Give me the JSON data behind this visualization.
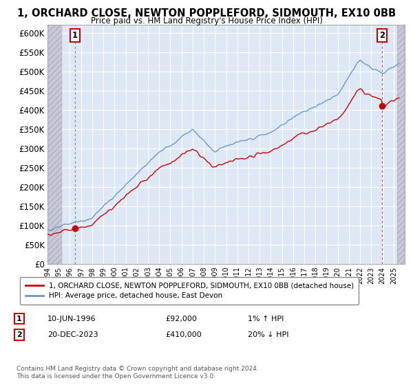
{
  "title": "1, ORCHARD CLOSE, NEWTON POPPLEFORD, SIDMOUTH, EX10 0BB",
  "subtitle": "Price paid vs. HM Land Registry's House Price Index (HPI)",
  "legend_line1": "1, ORCHARD CLOSE, NEWTON POPPLEFORD, SIDMOUTH, EX10 0BB (detached house)",
  "legend_line2": "HPI: Average price, detached house, East Devon",
  "annotation1_date": "10-JUN-1996",
  "annotation1_price": "£92,000",
  "annotation1_hpi": "1% ↑ HPI",
  "annotation2_date": "20-DEC-2023",
  "annotation2_price": "£410,000",
  "annotation2_hpi": "20% ↓ HPI",
  "copyright": "Contains HM Land Registry data © Crown copyright and database right 2024.\nThis data is licensed under the Open Government Licence v3.0.",
  "ylim": [
    0,
    620000
  ],
  "yticks": [
    0,
    50000,
    100000,
    150000,
    200000,
    250000,
    300000,
    350000,
    400000,
    450000,
    500000,
    550000,
    600000
  ],
  "ytick_labels": [
    "£0",
    "£50K",
    "£100K",
    "£150K",
    "£200K",
    "£250K",
    "£300K",
    "£350K",
    "£400K",
    "£450K",
    "£500K",
    "£550K",
    "£600K"
  ],
  "hpi_color": "#6699cc",
  "price_color": "#cc0000",
  "sale1_x": 1996.44,
  "sale1_y": 92000,
  "sale2_x": 2023.97,
  "sale2_y": 410000,
  "xlim": [
    1994.0,
    2026.0
  ],
  "xticks": [
    1994,
    1995,
    1996,
    1997,
    1998,
    1999,
    2000,
    2001,
    2002,
    2003,
    2004,
    2005,
    2006,
    2007,
    2008,
    2009,
    2010,
    2011,
    2012,
    2013,
    2014,
    2015,
    2016,
    2017,
    2018,
    2019,
    2020,
    2021,
    2022,
    2023,
    2024,
    2025
  ]
}
